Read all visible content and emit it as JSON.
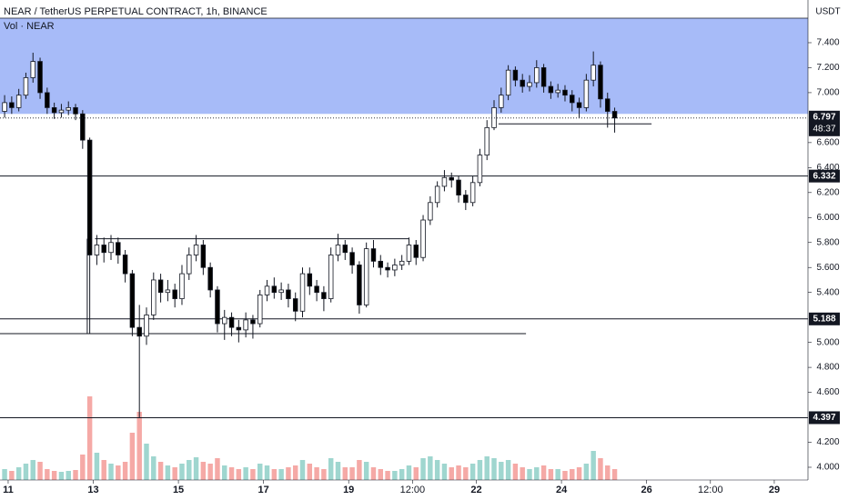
{
  "chart_data": {
    "type": "candlestick",
    "title": "NEAR / TetherUS PERPETUAL CONTRACT, 1h, BINANCE",
    "subtitle": "Vol · NEAR",
    "currency": "USDT",
    "x": [
      -2,
      2,
      6,
      10,
      14,
      18,
      22,
      26,
      30,
      34,
      38,
      42,
      46,
      50,
      54,
      58,
      62,
      66,
      70,
      74,
      78,
      82,
      86,
      90,
      94,
      98,
      102,
      106,
      110,
      114,
      118,
      122,
      126,
      130,
      134,
      138,
      142,
      146,
      150,
      154,
      158,
      162,
      166,
      170,
      174,
      178,
      182,
      186,
      190,
      194,
      198,
      202,
      206,
      210,
      214,
      218,
      222,
      226,
      230,
      234,
      238,
      242,
      246,
      250,
      254,
      258,
      262,
      266,
      270,
      274,
      278,
      282,
      286,
      290,
      294,
      298,
      302,
      306,
      310,
      314,
      318,
      322,
      326,
      330,
      334,
      338,
      342
    ],
    "open": [
      6.85,
      6.92,
      6.88,
      6.98,
      7.12,
      7.25,
      7.0,
      6.88,
      6.84,
      6.86,
      6.88,
      6.83,
      6.62,
      5.7,
      5.78,
      5.72,
      5.8,
      5.7,
      5.55,
      5.12,
      5.05,
      5.22,
      5.5,
      5.4,
      5.42,
      5.35,
      5.55,
      5.7,
      5.78,
      5.6,
      5.42,
      5.15,
      5.2,
      5.12,
      5.1,
      5.18,
      5.15,
      5.38,
      5.45,
      5.4,
      5.42,
      5.35,
      5.25,
      5.55,
      5.45,
      5.4,
      5.35,
      5.7,
      5.78,
      5.72,
      5.62,
      5.3,
      5.75,
      5.65,
      5.6,
      5.58,
      5.62,
      5.65,
      5.78,
      5.68,
      5.98,
      6.12,
      6.25,
      6.32,
      6.3,
      6.18,
      6.12,
      6.28,
      6.5,
      6.72,
      6.88,
      6.98,
      7.18,
      7.1,
      7.05,
      7.08,
      7.2,
      7.05,
      7.0,
      7.02,
      6.98,
      6.92,
      6.88,
      7.1,
      7.22,
      6.95,
      6.85
    ],
    "high": [
      6.98,
      6.97,
      7.03,
      7.16,
      7.32,
      7.28,
      7.04,
      6.92,
      6.91,
      6.93,
      6.91,
      6.86,
      6.64,
      5.86,
      5.84,
      5.86,
      5.84,
      5.74,
      5.58,
      5.3,
      5.28,
      5.56,
      5.55,
      5.5,
      5.47,
      5.62,
      5.76,
      5.86,
      5.82,
      5.64,
      5.45,
      5.26,
      5.24,
      5.18,
      5.24,
      5.22,
      5.42,
      5.5,
      5.52,
      5.48,
      5.47,
      5.4,
      5.6,
      5.6,
      5.5,
      5.45,
      5.76,
      5.87,
      5.82,
      5.76,
      5.65,
      5.8,
      5.82,
      5.7,
      5.64,
      5.67,
      5.7,
      5.84,
      5.82,
      6.02,
      6.17,
      6.29,
      6.38,
      6.36,
      6.33,
      6.22,
      6.33,
      6.55,
      6.78,
      6.94,
      7.04,
      7.22,
      7.21,
      7.15,
      7.14,
      7.26,
      7.23,
      7.09,
      7.07,
      7.06,
      7.02,
      6.96,
      7.15,
      7.33,
      7.25,
      7.0,
      6.88
    ],
    "low": [
      6.8,
      6.83,
      6.85,
      6.95,
      7.08,
      6.95,
      6.83,
      6.79,
      6.8,
      6.82,
      6.78,
      6.55,
      5.07,
      5.62,
      5.64,
      5.66,
      5.63,
      5.48,
      5.05,
      4.4,
      4.98,
      5.18,
      5.32,
      5.33,
      5.28,
      5.3,
      5.5,
      5.65,
      5.54,
      5.36,
      5.08,
      5.02,
      5.05,
      5.0,
      5.04,
      5.03,
      5.12,
      5.33,
      5.35,
      5.34,
      5.28,
      5.17,
      5.2,
      5.38,
      5.33,
      5.25,
      5.32,
      5.65,
      5.66,
      5.55,
      5.23,
      5.28,
      5.6,
      5.54,
      5.52,
      5.53,
      5.58,
      5.62,
      5.62,
      5.65,
      5.94,
      6.08,
      6.21,
      6.24,
      6.12,
      6.06,
      6.09,
      6.25,
      6.46,
      6.7,
      6.84,
      6.94,
      7.05,
      7.0,
      7.01,
      7.04,
      7.0,
      6.95,
      6.96,
      6.93,
      6.85,
      6.8,
      6.85,
      7.05,
      6.88,
      6.72,
      6.68
    ],
    "close": [
      6.92,
      6.88,
      6.98,
      7.12,
      7.25,
      7.0,
      6.88,
      6.84,
      6.86,
      6.88,
      6.83,
      6.62,
      5.7,
      5.78,
      5.72,
      5.8,
      5.7,
      5.55,
      5.12,
      5.05,
      5.22,
      5.5,
      5.4,
      5.42,
      5.35,
      5.55,
      5.7,
      5.78,
      5.6,
      5.42,
      5.15,
      5.2,
      5.12,
      5.1,
      5.18,
      5.15,
      5.38,
      5.45,
      5.4,
      5.42,
      5.35,
      5.25,
      5.55,
      5.45,
      5.4,
      5.35,
      5.7,
      5.78,
      5.72,
      5.62,
      5.3,
      5.75,
      5.65,
      5.6,
      5.58,
      5.62,
      5.65,
      5.78,
      5.68,
      5.98,
      6.12,
      6.25,
      6.32,
      6.3,
      6.18,
      6.12,
      6.28,
      6.5,
      6.72,
      6.88,
      6.98,
      7.18,
      7.1,
      7.05,
      7.08,
      7.2,
      7.05,
      7.0,
      7.02,
      6.98,
      6.92,
      6.88,
      7.1,
      7.22,
      6.95,
      6.85,
      6.797
    ],
    "volume": [
      12,
      10,
      14,
      18,
      22,
      20,
      12,
      10,
      9,
      10,
      11,
      28,
      92,
      30,
      22,
      18,
      16,
      20,
      52,
      75,
      40,
      26,
      20,
      16,
      14,
      18,
      22,
      25,
      20,
      18,
      24,
      16,
      14,
      12,
      14,
      12,
      18,
      16,
      12,
      12,
      14,
      16,
      22,
      18,
      14,
      12,
      24,
      20,
      14,
      14,
      22,
      20,
      14,
      12,
      10,
      10,
      12,
      16,
      14,
      24,
      26,
      22,
      18,
      14,
      16,
      14,
      18,
      22,
      26,
      24,
      20,
      22,
      18,
      14,
      12,
      14,
      16,
      12,
      12,
      10,
      12,
      14,
      18,
      32,
      24,
      16,
      12
    ],
    "up_color": "#ffffff",
    "down_color": "#000000",
    "volume_up_color": "#9fd6cf",
    "volume_down_color": "#f5a9a6",
    "xlim": [
      -4.6,
      451
    ],
    "ylim": [
      3.898,
      7.742
    ],
    "xticks": [
      {
        "value": 0,
        "label": "11"
      },
      {
        "value": 48,
        "label": "13"
      },
      {
        "value": 96,
        "label": "15"
      },
      {
        "value": 144,
        "label": "17"
      },
      {
        "value": 192,
        "label": "19"
      },
      {
        "value": 228,
        "label": "12:00"
      },
      {
        "value": 264,
        "label": "22"
      },
      {
        "value": 312,
        "label": "24"
      },
      {
        "value": 360,
        "label": "26"
      },
      {
        "value": 396,
        "label": "12:00"
      },
      {
        "value": 432,
        "label": "29"
      }
    ],
    "yticks": [
      {
        "value": 7.4,
        "label": "7.400"
      },
      {
        "value": 7.2,
        "label": "7.200"
      },
      {
        "value": 7.0,
        "label": "7.000"
      },
      {
        "value": 6.6,
        "label": "6.600"
      },
      {
        "value": 6.4,
        "label": "6.400"
      },
      {
        "value": 6.2,
        "label": "6.200"
      },
      {
        "value": 6.0,
        "label": "6.000"
      },
      {
        "value": 5.8,
        "label": "5.800"
      },
      {
        "value": 5.6,
        "label": "5.600"
      },
      {
        "value": 5.4,
        "label": "5.400"
      },
      {
        "value": 5.0,
        "label": "5.000"
      },
      {
        "value": 4.8,
        "label": "4.800"
      },
      {
        "value": 4.6,
        "label": "4.600"
      },
      {
        "value": 4.2,
        "label": "4.200"
      },
      {
        "value": 4.0,
        "label": "4.000"
      }
    ],
    "zone": {
      "low": 6.83,
      "color": "#a7bbf8"
    },
    "levels": [
      6.332,
      5.188,
      4.397
    ],
    "segments": [
      {
        "x": [
          -4.6,
          292
        ],
        "y": [
          5.07,
          5.07
        ]
      },
      {
        "x": [
          44.6,
          44.6
        ],
        "y": [
          5.83,
          5.07
        ]
      },
      {
        "x": [
          49,
          226
        ],
        "y": [
          5.83,
          5.83
        ]
      },
      {
        "x": [
          276.5,
          362.8
        ],
        "y": [
          6.75,
          6.75
        ]
      }
    ],
    "last_price": {
      "value": 6.797,
      "countdown": "48:37"
    }
  }
}
